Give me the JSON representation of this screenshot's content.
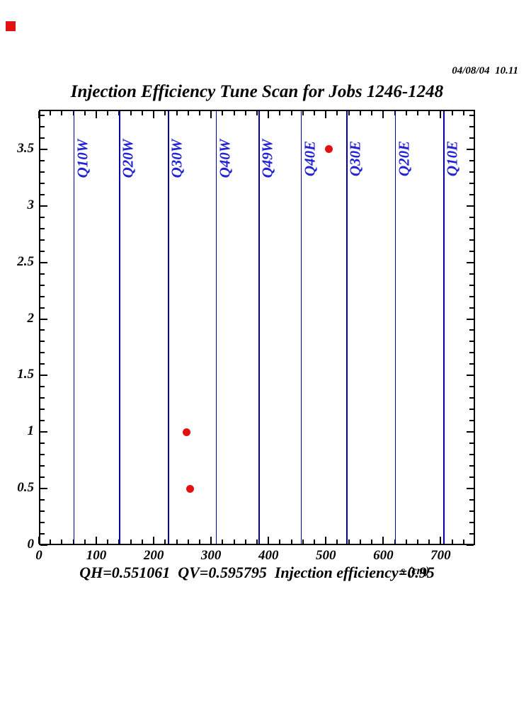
{
  "page": {
    "timestamp": "04/08/04  10.11",
    "title": "Injection Efficiency Tune Scan for Jobs 1246-1248",
    "footer_annotation": "QH=0.551061  QV=0.595795  Injection efficiency=0.95",
    "marker_color": "#e31212"
  },
  "chart_data": {
    "type": "scatter",
    "title": "Injection Efficiency Tune Scan for Jobs 1246-1248",
    "xlabel": "s (cm)",
    "ylabel": "",
    "xlim": [
      0,
      760
    ],
    "ylim": [
      0,
      3.85
    ],
    "grid": false,
    "legend": "none",
    "x_major_ticks": [
      0,
      100,
      200,
      300,
      400,
      500,
      600,
      700
    ],
    "x_minor_step": 20,
    "y_major_ticks": [
      0,
      0.5,
      1,
      1.5,
      2,
      2.5,
      3,
      3.5
    ],
    "y_minor_step": 0.1,
    "points": [
      {
        "s": 257,
        "value": 1.0
      },
      {
        "s": 263,
        "value": 0.5
      },
      {
        "s": 505,
        "value": 3.5
      }
    ],
    "point_color": "#e31212",
    "quad_markers": [
      {
        "label": "Q10W",
        "s": 60
      },
      {
        "label": "Q20W",
        "s": 140
      },
      {
        "label": "Q30W",
        "s": 225
      },
      {
        "label": "Q40W",
        "s": 308
      },
      {
        "label": "Q49W",
        "s": 383
      },
      {
        "label": "Q40E",
        "s": 456
      },
      {
        "label": "Q30E",
        "s": 536
      },
      {
        "label": "Q20E",
        "s": 620
      },
      {
        "label": "Q10E",
        "s": 705
      }
    ],
    "line_color": "#0000a0",
    "label_color": "#2121d6",
    "annotation": "QH=0.551061  QV=0.595795  Injection efficiency=0.95"
  }
}
